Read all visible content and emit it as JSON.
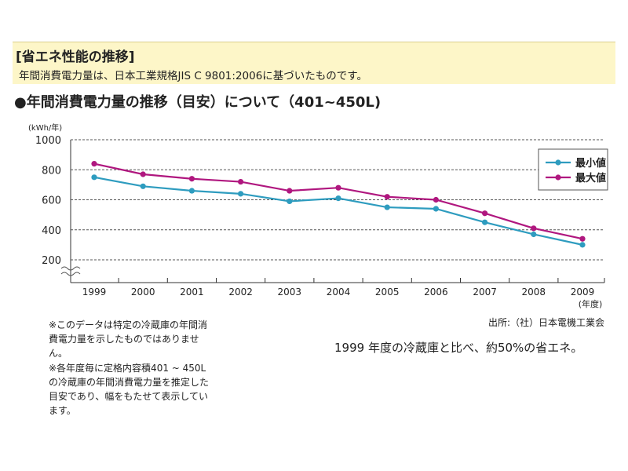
{
  "header": {
    "title": "[省エネ性能の推移]",
    "subtitle": "年間消費電力量は、日本工業規格JIS C 9801:2006に基づいたものです。"
  },
  "chart_data": {
    "type": "line",
    "title": "●年間消費電力量の推移（目安）について（401~450L)",
    "ylabel": "(kWh/年)",
    "xlabel": "(年度)",
    "categories": [
      "1999",
      "2000",
      "2001",
      "2002",
      "2003",
      "2004",
      "2005",
      "2006",
      "2007",
      "2008",
      "2009"
    ],
    "yticks": [
      "1000",
      "800",
      "600",
      "400",
      "200"
    ],
    "ylim": [
      200,
      1000
    ],
    "grid": true,
    "legend_position": "top-right",
    "series": [
      {
        "name": "最小値",
        "color": "#2e9cbf",
        "values": [
          750,
          690,
          660,
          640,
          590,
          610,
          550,
          540,
          450,
          370,
          300
        ]
      },
      {
        "name": "最大値",
        "color": "#b0177f",
        "values": [
          840,
          770,
          740,
          720,
          660,
          680,
          620,
          600,
          510,
          410,
          340
        ]
      }
    ]
  },
  "notes": {
    "note1": "※このデータは特定の冷蔵庫の年間消費電力量を示したものではありません。",
    "note2": "※各年度毎に定格内容積401 ~ 450Lの冷蔵庫の年間消費電力量を推定した目安であり、幅をもたせて表示しています。"
  },
  "source": "出所:（社）日本電機工業会",
  "summary": "1999 年度の冷蔵庫と比べ、約50%の省エネ。"
}
